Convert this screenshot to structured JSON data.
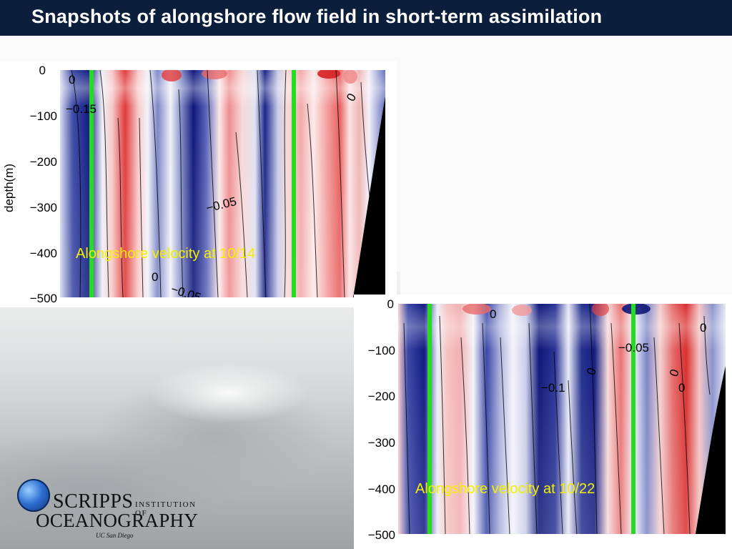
{
  "header": {
    "title": "Snapshots of alongshore flow field in short-term assimilation"
  },
  "colors": {
    "title_bar": "#0b1f3d",
    "positive": "#d62a2a",
    "negative": "#101a7a",
    "marker_line": "#22dd22",
    "caption": "#f4f000",
    "land": "#000000"
  },
  "panels": [
    {
      "caption": "Alongshore velocity at 10/14",
      "ylabel": "depth(m)",
      "yticks": [
        "0",
        "−100",
        "−200",
        "−300",
        "−400",
        "−500"
      ],
      "contour_labels": [
        "0",
        "−0.15",
        "−0.05",
        "0",
        "−0.05",
        "0"
      ]
    },
    {
      "caption": "Alongshore velocity at 10/22",
      "yticks": [
        "0",
        "−100",
        "−200",
        "−300",
        "−400",
        "−500"
      ],
      "contour_labels": [
        "0",
        "0",
        "−0.05",
        "0",
        "−0.1",
        "0",
        "0"
      ]
    }
  ],
  "chart_data": [
    {
      "type": "heatmap",
      "title": "Alongshore velocity at 10/14",
      "ylabel": "depth(m)",
      "ylim": [
        -500,
        0
      ],
      "yticks": [
        0,
        -100,
        -200,
        -300,
        -400,
        -500
      ],
      "contour_levels_labeled": [
        0,
        -0.15,
        -0.05,
        0,
        -0.05,
        0
      ]
    },
    {
      "type": "heatmap",
      "title": "Alongshore velocity at 10/22",
      "ylim": [
        -500,
        0
      ],
      "yticks": [
        0,
        -100,
        -200,
        -300,
        -400,
        -500
      ],
      "contour_levels_labeled": [
        0,
        0,
        -0.05,
        0,
        -0.1,
        0,
        0
      ]
    }
  ],
  "logo": {
    "line1": "SCRIPPS",
    "institution": "INSTITUTION OF",
    "line2": "OCEANOGRAPHY",
    "sub": "UC San Diego"
  }
}
